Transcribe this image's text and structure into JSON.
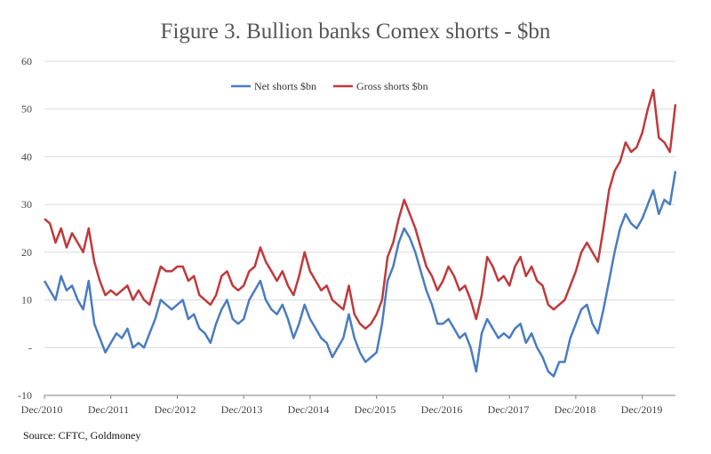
{
  "title": "Figure 3. Bullion banks Comex shorts - $bn",
  "source": "Source: CFTC, Goldmoney",
  "colors": {
    "net": "#4a7cc0",
    "gross": "#c0393b",
    "grid": "#d9d9d9",
    "axis": "#7f7f7f"
  },
  "chart_data": {
    "type": "line",
    "title": "Figure 3. Bullion banks Comex shorts - $bn",
    "xlabel": "",
    "ylabel": "",
    "x_range": [
      "2010-12",
      "2020-06"
    ],
    "ylim": [
      -10,
      60
    ],
    "y_ticks": [
      {
        "value": -10,
        "label": "-10"
      },
      {
        "value": 0,
        "label": "-"
      },
      {
        "value": 10,
        "label": "10"
      },
      {
        "value": 20,
        "label": "20"
      },
      {
        "value": 30,
        "label": "30"
      },
      {
        "value": 40,
        "label": "40"
      },
      {
        "value": 50,
        "label": "50"
      },
      {
        "value": 60,
        "label": "60"
      }
    ],
    "x_ticks": [
      "Dec/2010",
      "Dec/2011",
      "Dec/2012",
      "Dec/2013",
      "Dec/2014",
      "Dec/2015",
      "Dec/2016",
      "Dec/2017",
      "Dec/2018",
      "Dec/2019"
    ],
    "grid": "horizontal",
    "legend_position": "top-center",
    "series": [
      {
        "name": "Net shorts $bn",
        "color": "#4a7cc0",
        "points": [
          [
            "2010-12",
            14
          ],
          [
            "2011-01",
            12
          ],
          [
            "2011-02",
            10
          ],
          [
            "2011-03",
            15
          ],
          [
            "2011-04",
            12
          ],
          [
            "2011-05",
            13
          ],
          [
            "2011-06",
            10
          ],
          [
            "2011-07",
            8
          ],
          [
            "2011-08",
            14
          ],
          [
            "2011-09",
            5
          ],
          [
            "2011-10",
            2
          ],
          [
            "2011-11",
            -1
          ],
          [
            "2011-12",
            1
          ],
          [
            "2012-01",
            3
          ],
          [
            "2012-02",
            2
          ],
          [
            "2012-03",
            4
          ],
          [
            "2012-04",
            0
          ],
          [
            "2012-05",
            1
          ],
          [
            "2012-06",
            0
          ],
          [
            "2012-07",
            3
          ],
          [
            "2012-08",
            6
          ],
          [
            "2012-09",
            10
          ],
          [
            "2012-10",
            9
          ],
          [
            "2012-11",
            8
          ],
          [
            "2012-12",
            9
          ],
          [
            "2013-01",
            10
          ],
          [
            "2013-02",
            6
          ],
          [
            "2013-03",
            7
          ],
          [
            "2013-04",
            4
          ],
          [
            "2013-05",
            3
          ],
          [
            "2013-06",
            1
          ],
          [
            "2013-07",
            5
          ],
          [
            "2013-08",
            8
          ],
          [
            "2013-09",
            10
          ],
          [
            "2013-10",
            6
          ],
          [
            "2013-11",
            5
          ],
          [
            "2013-12",
            6
          ],
          [
            "2014-01",
            10
          ],
          [
            "2014-02",
            12
          ],
          [
            "2014-03",
            14
          ],
          [
            "2014-04",
            10
          ],
          [
            "2014-05",
            8
          ],
          [
            "2014-06",
            7
          ],
          [
            "2014-07",
            9
          ],
          [
            "2014-08",
            6
          ],
          [
            "2014-09",
            2
          ],
          [
            "2014-10",
            5
          ],
          [
            "2014-11",
            9
          ],
          [
            "2014-12",
            6
          ],
          [
            "2015-01",
            4
          ],
          [
            "2015-02",
            2
          ],
          [
            "2015-03",
            1
          ],
          [
            "2015-04",
            -2
          ],
          [
            "2015-05",
            0
          ],
          [
            "2015-06",
            2
          ],
          [
            "2015-07",
            7
          ],
          [
            "2015-08",
            2
          ],
          [
            "2015-09",
            -1
          ],
          [
            "2015-10",
            -3
          ],
          [
            "2015-11",
            -2
          ],
          [
            "2015-12",
            -1
          ],
          [
            "2016-01",
            5
          ],
          [
            "2016-02",
            14
          ],
          [
            "2016-03",
            17
          ],
          [
            "2016-04",
            22
          ],
          [
            "2016-05",
            25
          ],
          [
            "2016-06",
            23
          ],
          [
            "2016-07",
            20
          ],
          [
            "2016-08",
            16
          ],
          [
            "2016-09",
            12
          ],
          [
            "2016-10",
            9
          ],
          [
            "2016-11",
            5
          ],
          [
            "2016-12",
            5
          ],
          [
            "2017-01",
            6
          ],
          [
            "2017-02",
            4
          ],
          [
            "2017-03",
            2
          ],
          [
            "2017-04",
            3
          ],
          [
            "2017-05",
            0
          ],
          [
            "2017-06",
            -5
          ],
          [
            "2017-07",
            3
          ],
          [
            "2017-08",
            6
          ],
          [
            "2017-09",
            4
          ],
          [
            "2017-10",
            2
          ],
          [
            "2017-11",
            3
          ],
          [
            "2017-12",
            2
          ],
          [
            "2018-01",
            4
          ],
          [
            "2018-02",
            5
          ],
          [
            "2018-03",
            1
          ],
          [
            "2018-04",
            3
          ],
          [
            "2018-05",
            0
          ],
          [
            "2018-06",
            -2
          ],
          [
            "2018-07",
            -5
          ],
          [
            "2018-08",
            -6
          ],
          [
            "2018-09",
            -3
          ],
          [
            "2018-10",
            -3
          ],
          [
            "2018-11",
            2
          ],
          [
            "2018-12",
            5
          ],
          [
            "2019-01",
            8
          ],
          [
            "2019-02",
            9
          ],
          [
            "2019-03",
            5
          ],
          [
            "2019-04",
            3
          ],
          [
            "2019-05",
            8
          ],
          [
            "2019-06",
            14
          ],
          [
            "2019-07",
            20
          ],
          [
            "2019-08",
            25
          ],
          [
            "2019-09",
            28
          ],
          [
            "2019-10",
            26
          ],
          [
            "2019-11",
            25
          ],
          [
            "2019-12",
            27
          ],
          [
            "2020-01",
            30
          ],
          [
            "2020-02",
            33
          ],
          [
            "2020-03",
            28
          ],
          [
            "2020-04",
            31
          ],
          [
            "2020-05",
            30
          ],
          [
            "2020-06",
            37
          ]
        ]
      },
      {
        "name": "Gross shorts $bn",
        "color": "#c0393b",
        "points": [
          [
            "2010-12",
            27
          ],
          [
            "2011-01",
            26
          ],
          [
            "2011-02",
            22
          ],
          [
            "2011-03",
            25
          ],
          [
            "2011-04",
            21
          ],
          [
            "2011-05",
            24
          ],
          [
            "2011-06",
            22
          ],
          [
            "2011-07",
            20
          ],
          [
            "2011-08",
            25
          ],
          [
            "2011-09",
            18
          ],
          [
            "2011-10",
            14
          ],
          [
            "2011-11",
            11
          ],
          [
            "2011-12",
            12
          ],
          [
            "2012-01",
            11
          ],
          [
            "2012-02",
            12
          ],
          [
            "2012-03",
            13
          ],
          [
            "2012-04",
            10
          ],
          [
            "2012-05",
            12
          ],
          [
            "2012-06",
            10
          ],
          [
            "2012-07",
            9
          ],
          [
            "2012-08",
            13
          ],
          [
            "2012-09",
            17
          ],
          [
            "2012-10",
            16
          ],
          [
            "2012-11",
            16
          ],
          [
            "2012-12",
            17
          ],
          [
            "2013-01",
            17
          ],
          [
            "2013-02",
            14
          ],
          [
            "2013-03",
            15
          ],
          [
            "2013-04",
            11
          ],
          [
            "2013-05",
            10
          ],
          [
            "2013-06",
            9
          ],
          [
            "2013-07",
            11
          ],
          [
            "2013-08",
            15
          ],
          [
            "2013-09",
            16
          ],
          [
            "2013-10",
            13
          ],
          [
            "2013-11",
            12
          ],
          [
            "2013-12",
            13
          ],
          [
            "2014-01",
            16
          ],
          [
            "2014-02",
            17
          ],
          [
            "2014-03",
            21
          ],
          [
            "2014-04",
            18
          ],
          [
            "2014-05",
            16
          ],
          [
            "2014-06",
            14
          ],
          [
            "2014-07",
            16
          ],
          [
            "2014-08",
            13
          ],
          [
            "2014-09",
            11
          ],
          [
            "2014-10",
            15
          ],
          [
            "2014-11",
            20
          ],
          [
            "2014-12",
            16
          ],
          [
            "2015-01",
            14
          ],
          [
            "2015-02",
            12
          ],
          [
            "2015-03",
            13
          ],
          [
            "2015-04",
            10
          ],
          [
            "2015-05",
            9
          ],
          [
            "2015-06",
            8
          ],
          [
            "2015-07",
            13
          ],
          [
            "2015-08",
            7
          ],
          [
            "2015-09",
            5
          ],
          [
            "2015-10",
            4
          ],
          [
            "2015-11",
            5
          ],
          [
            "2015-12",
            7
          ],
          [
            "2016-01",
            10
          ],
          [
            "2016-02",
            19
          ],
          [
            "2016-03",
            22
          ],
          [
            "2016-04",
            27
          ],
          [
            "2016-05",
            31
          ],
          [
            "2016-06",
            28
          ],
          [
            "2016-07",
            25
          ],
          [
            "2016-08",
            21
          ],
          [
            "2016-09",
            17
          ],
          [
            "2016-10",
            15
          ],
          [
            "2016-11",
            12
          ],
          [
            "2016-12",
            14
          ],
          [
            "2017-01",
            17
          ],
          [
            "2017-02",
            15
          ],
          [
            "2017-03",
            12
          ],
          [
            "2017-04",
            13
          ],
          [
            "2017-05",
            10
          ],
          [
            "2017-06",
            6
          ],
          [
            "2017-07",
            11
          ],
          [
            "2017-08",
            19
          ],
          [
            "2017-09",
            17
          ],
          [
            "2017-10",
            14
          ],
          [
            "2017-11",
            15
          ],
          [
            "2017-12",
            13
          ],
          [
            "2018-01",
            17
          ],
          [
            "2018-02",
            19
          ],
          [
            "2018-03",
            15
          ],
          [
            "2018-04",
            17
          ],
          [
            "2018-05",
            14
          ],
          [
            "2018-06",
            13
          ],
          [
            "2018-07",
            9
          ],
          [
            "2018-08",
            8
          ],
          [
            "2018-09",
            9
          ],
          [
            "2018-10",
            10
          ],
          [
            "2018-11",
            13
          ],
          [
            "2018-12",
            16
          ],
          [
            "2019-01",
            20
          ],
          [
            "2019-02",
            22
          ],
          [
            "2019-03",
            20
          ],
          [
            "2019-04",
            18
          ],
          [
            "2019-05",
            25
          ],
          [
            "2019-06",
            33
          ],
          [
            "2019-07",
            37
          ],
          [
            "2019-08",
            39
          ],
          [
            "2019-09",
            43
          ],
          [
            "2019-10",
            41
          ],
          [
            "2019-11",
            42
          ],
          [
            "2019-12",
            45
          ],
          [
            "2020-01",
            50
          ],
          [
            "2020-02",
            54
          ],
          [
            "2020-03",
            44
          ],
          [
            "2020-04",
            43
          ],
          [
            "2020-05",
            41
          ],
          [
            "2020-06",
            51
          ]
        ]
      }
    ]
  }
}
